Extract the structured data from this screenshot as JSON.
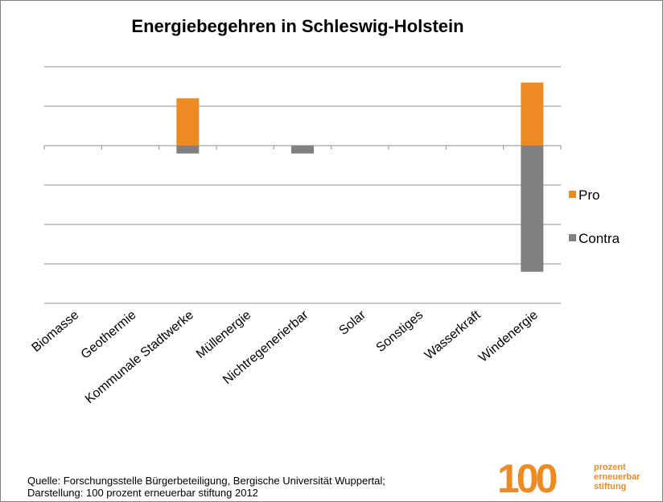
{
  "chart_data": {
    "type": "bar",
    "stacked": true,
    "title": "Energiebegehren in Schleswig-Holstein",
    "categories": [
      "Biomasse",
      "Geothermie",
      "Kommunale Stadtwerke",
      "Müllenergie",
      "Nichtregenerierbar",
      "Solar",
      "Sonstiges",
      "Wasserkraft",
      "Windenergie"
    ],
    "series": [
      {
        "name": "Pro",
        "color": "#ed8b23",
        "values": [
          0,
          0,
          1.2,
          0,
          0,
          0,
          0,
          0,
          1.6
        ]
      },
      {
        "name": "Contra",
        "color": "#808080",
        "values": [
          0,
          0,
          -0.2,
          0,
          -0.2,
          0,
          0,
          0,
          -3.2
        ]
      }
    ],
    "ylim": [
      -4,
      2
    ],
    "yticks": [
      -4,
      -3,
      -2,
      -1,
      0,
      1,
      2
    ],
    "grid": true,
    "legend": "right"
  },
  "footer": {
    "source": [
      "Quelle: Forschungsstelle Bürgerbeteiligung, Bergische Universität Wuppertal;",
      "Darstellung: 100 prozent erneuerbar stiftung 2012"
    ],
    "logo": {
      "number": "100",
      "lines": [
        "prozent",
        "erneuerbar",
        "stiftung"
      ]
    }
  }
}
